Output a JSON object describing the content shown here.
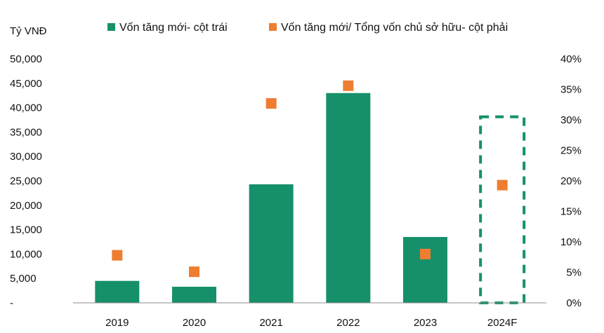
{
  "chart_data": {
    "type": "bar",
    "unit_left": "Tỷ VNĐ",
    "categories": [
      "2019",
      "2020",
      "2021",
      "2022",
      "2023",
      "2024F"
    ],
    "series": [
      {
        "name": "Vốn tăng mới- cột trái",
        "type": "bar",
        "axis": "left",
        "color": "#16906A",
        "values": [
          4500,
          3300,
          24300,
          43000,
          13500,
          0
        ]
      },
      {
        "name": "Vốn tăng mới/ Tổng vốn chủ sở hữu- cột phải",
        "type": "scatter",
        "marker": "square",
        "axis": "right",
        "color": "#EE7D31",
        "values": [
          7.8,
          5.1,
          32.7,
          35.6,
          8.0,
          19.3
        ]
      }
    ],
    "left_axis": {
      "ylim": [
        0,
        50000
      ],
      "ticks": [
        "-",
        "5,000",
        "10,000",
        "15,000",
        "20,000",
        "25,000",
        "30,000",
        "35,000",
        "40,000",
        "45,000",
        "50,000"
      ]
    },
    "right_axis": {
      "ylim": [
        0,
        40
      ],
      "ticks": [
        "0%",
        "5%",
        "10%",
        "15%",
        "20%",
        "25%",
        "30%",
        "35%",
        "40%"
      ]
    },
    "highlight": {
      "category": "2024F",
      "style": "dashed-box",
      "color": "#16906A"
    },
    "grid": false,
    "legend_position": "top"
  }
}
